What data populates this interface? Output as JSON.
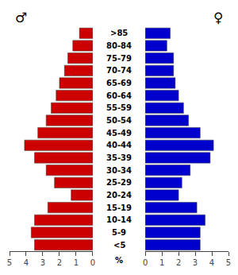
{
  "chart_data": {
    "type": "bar",
    "orientation": "horizontal",
    "categories": [
      "<5",
      "5-9",
      "10-14",
      "15-19",
      "20-24",
      "25-29",
      "30-34",
      "35-39",
      "40-44",
      "45-49",
      "50-54",
      "55-59",
      "60-64",
      "65-69",
      "70-74",
      "75-79",
      "80-84",
      ">85"
    ],
    "series": [
      {
        "name": "♂",
        "color": "#cc0000",
        "values": [
          3.5,
          3.7,
          3.5,
          2.7,
          1.3,
          2.3,
          2.8,
          3.5,
          4.1,
          3.3,
          2.8,
          2.5,
          2.2,
          2.0,
          1.7,
          1.5,
          1.2,
          0.8
        ]
      },
      {
        "name": "♀",
        "color": "#0000cc",
        "values": [
          3.3,
          3.3,
          3.6,
          3.1,
          2.0,
          2.2,
          2.7,
          3.9,
          4.1,
          3.3,
          2.6,
          2.3,
          2.0,
          1.8,
          1.7,
          1.7,
          1.3,
          1.5
        ]
      }
    ],
    "xlabel": "%",
    "xlim": [
      0,
      5
    ],
    "xticks": [
      0,
      1,
      2,
      3,
      4,
      5
    ],
    "grid": false,
    "legend": false
  }
}
